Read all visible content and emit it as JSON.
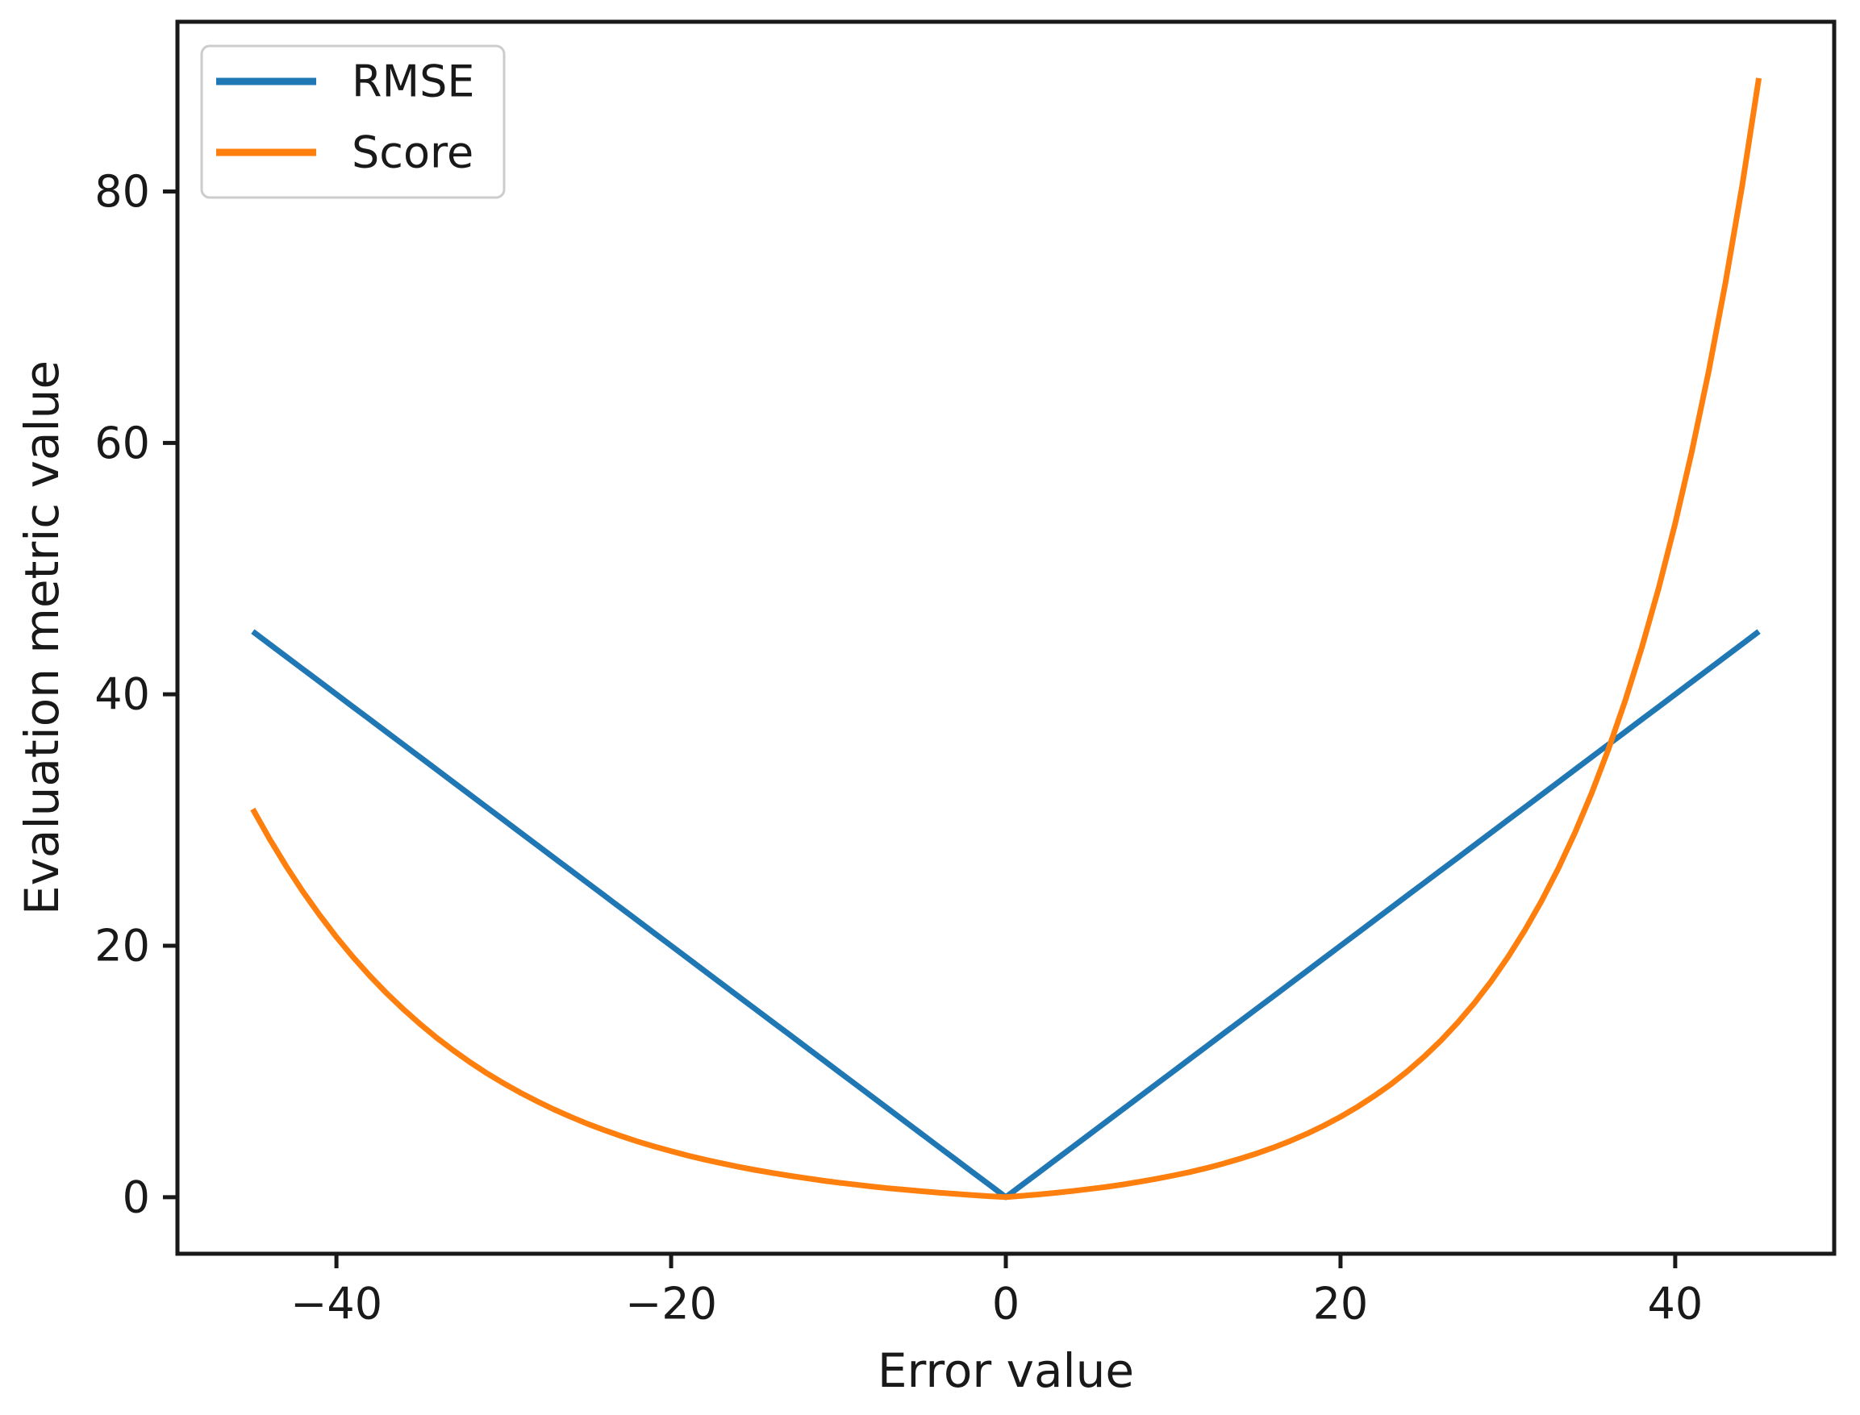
{
  "figure": {
    "background": "#ffffff",
    "text_color": "#191919",
    "spine_color": "#191919"
  },
  "chart_data": {
    "type": "line",
    "title": "",
    "xlabel": "Error value",
    "ylabel": "Evaluation metric value",
    "xlim": [
      -49.5,
      49.5
    ],
    "ylim": [
      -4.5,
      93.5
    ],
    "grid": false,
    "legend": {
      "position": "upper left",
      "entries": [
        {
          "label": "RMSE",
          "color": "#1f77b4"
        },
        {
          "label": "Score",
          "color": "#ff7f0e"
        }
      ]
    },
    "xticks": {
      "values": [
        -40,
        -20,
        0,
        20,
        40
      ],
      "labels": [
        "−40",
        "−20",
        "0",
        "20",
        "40"
      ]
    },
    "yticks": {
      "values": [
        0,
        20,
        40,
        60,
        80
      ],
      "labels": [
        "0",
        "20",
        "40",
        "60",
        "80"
      ]
    },
    "x": [
      -45,
      -44,
      -43,
      -42,
      -41,
      -40,
      -39,
      -38,
      -37,
      -36,
      -35,
      -34,
      -33,
      -32,
      -31,
      -30,
      -29,
      -28,
      -27,
      -26,
      -25,
      -24,
      -23,
      -22,
      -21,
      -20,
      -19,
      -18,
      -17,
      -16,
      -15,
      -14,
      -13,
      -12,
      -11,
      -10,
      -9,
      -8,
      -7,
      -6,
      -5,
      -4,
      -3,
      -2,
      -1,
      0,
      1,
      2,
      3,
      4,
      5,
      6,
      7,
      8,
      9,
      10,
      11,
      12,
      13,
      14,
      15,
      16,
      17,
      18,
      19,
      20,
      21,
      22,
      23,
      24,
      25,
      26,
      27,
      28,
      29,
      30,
      31,
      32,
      33,
      34,
      35,
      36,
      37,
      38,
      39,
      40,
      41,
      42,
      43,
      44,
      45
    ],
    "series": [
      {
        "name": "RMSE",
        "color": "#1f77b4",
        "values": [
          45,
          44,
          43,
          42,
          41,
          40,
          39,
          38,
          37,
          36,
          35,
          34,
          33,
          32,
          31,
          30,
          29,
          28,
          27,
          26,
          25,
          24,
          23,
          22,
          21,
          20,
          19,
          18,
          17,
          16,
          15,
          14,
          13,
          12,
          11,
          10,
          9,
          8,
          7,
          6,
          5,
          4,
          3,
          2,
          1,
          0,
          1,
          2,
          3,
          4,
          5,
          6,
          7,
          8,
          9,
          10,
          11,
          12,
          13,
          14,
          15,
          16,
          17,
          18,
          19,
          20,
          21,
          22,
          23,
          24,
          25,
          26,
          27,
          28,
          29,
          30,
          31,
          32,
          33,
          34,
          35,
          36,
          37,
          38,
          39,
          40,
          41,
          42,
          43,
          44,
          45
        ]
      },
      {
        "name": "Score",
        "color": "#ff7f0e",
        "values": [
          30.87,
          28.51,
          26.32,
          24.3,
          22.43,
          20.69,
          19.09,
          17.6,
          16.22,
          14.95,
          13.77,
          12.67,
          11.66,
          10.72,
          9.85,
          9.05,
          8.31,
          7.62,
          6.98,
          6.39,
          5.84,
          5.34,
          4.87,
          4.43,
          4.03,
          3.66,
          3.31,
          2.99,
          2.7,
          2.42,
          2.17,
          1.94,
          1.72,
          1.52,
          1.33,
          1.16,
          1.0,
          0.85,
          0.71,
          0.59,
          0.47,
          0.36,
          0.26,
          0.17,
          0.08,
          0.0,
          0.11,
          0.22,
          0.35,
          0.49,
          0.65,
          0.82,
          1.01,
          1.23,
          1.46,
          1.72,
          2.0,
          2.32,
          2.67,
          3.06,
          3.48,
          3.95,
          4.47,
          5.05,
          5.69,
          6.39,
          7.17,
          8.03,
          8.97,
          10.02,
          11.18,
          12.46,
          13.88,
          15.44,
          17.17,
          19.09,
          21.2,
          23.53,
          26.11,
          28.96,
          32.12,
          35.6,
          39.45,
          43.7,
          48.4,
          53.6,
          59.34,
          65.69,
          72.7,
          80.45,
          89.02
        ]
      }
    ]
  }
}
